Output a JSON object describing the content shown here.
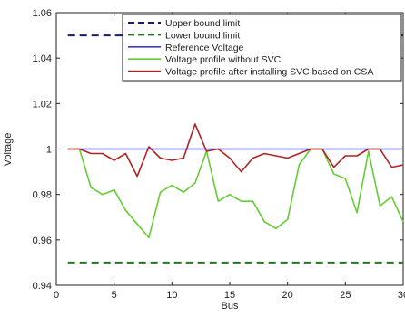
{
  "chart_data": {
    "type": "line",
    "xlabel": "Bus",
    "ylabel": "Voltage",
    "xlim": [
      0,
      30
    ],
    "ylim": [
      0.94,
      1.06
    ],
    "x_ticks": [
      0,
      5,
      10,
      15,
      20,
      25,
      30
    ],
    "y_ticks": [
      0.94,
      0.96,
      0.98,
      1.0,
      1.02,
      1.04,
      1.06
    ],
    "x_tick_labels": [
      "0",
      "5",
      "10",
      "15",
      "20",
      "25",
      "30"
    ],
    "y_tick_labels": [
      "0.94",
      "0.96",
      "0.98",
      "1",
      "1.02",
      "1.04",
      "1.06"
    ],
    "grid": false,
    "legend_position": "top-right",
    "series": [
      {
        "name": "Upper bound limit",
        "color": "#1a1a6e",
        "dash": "dashed",
        "x": [
          1,
          30
        ],
        "y": [
          1.05,
          1.05
        ]
      },
      {
        "name": "Lower bound limit",
        "color": "#1f7a1f",
        "dash": "dashed",
        "x": [
          1,
          30
        ],
        "y": [
          0.95,
          0.95
        ]
      },
      {
        "name": "Reference Voltage",
        "color": "#3b3bd6",
        "dash": "solid",
        "x": [
          1,
          30
        ],
        "y": [
          1.0,
          1.0
        ]
      },
      {
        "name": "Voltage profile without SVC",
        "color": "#66cc33",
        "dash": "solid",
        "x": [
          1,
          2,
          3,
          4,
          5,
          6,
          7,
          8,
          9,
          10,
          11,
          12,
          13,
          14,
          15,
          16,
          17,
          18,
          19,
          20,
          21,
          22,
          23,
          24,
          25,
          26,
          27,
          28,
          29,
          30
        ],
        "y": [
          1.0,
          1.0,
          0.983,
          0.98,
          0.982,
          0.973,
          0.967,
          0.961,
          0.981,
          0.984,
          0.981,
          0.985,
          0.999,
          0.977,
          0.98,
          0.977,
          0.977,
          0.968,
          0.965,
          0.969,
          0.993,
          1.0,
          1.0,
          0.989,
          0.987,
          0.972,
          0.999,
          0.975,
          0.979,
          0.968
        ]
      },
      {
        "name": "Voltage profile after installing SVC based on CSA",
        "color": "#b22222",
        "dash": "solid",
        "x": [
          1,
          2,
          3,
          4,
          5,
          6,
          7,
          8,
          9,
          10,
          11,
          12,
          13,
          14,
          15,
          16,
          17,
          18,
          19,
          20,
          21,
          22,
          23,
          24,
          25,
          26,
          27,
          28,
          29,
          30
        ],
        "y": [
          1.0,
          1.0,
          0.998,
          0.998,
          0.995,
          0.998,
          0.988,
          1.001,
          0.996,
          0.995,
          0.996,
          1.011,
          0.999,
          1.0,
          0.996,
          0.99,
          0.996,
          0.998,
          0.997,
          0.996,
          0.998,
          1.0,
          1.0,
          0.992,
          0.997,
          0.997,
          1.0,
          1.0,
          0.992,
          0.993
        ]
      }
    ]
  }
}
